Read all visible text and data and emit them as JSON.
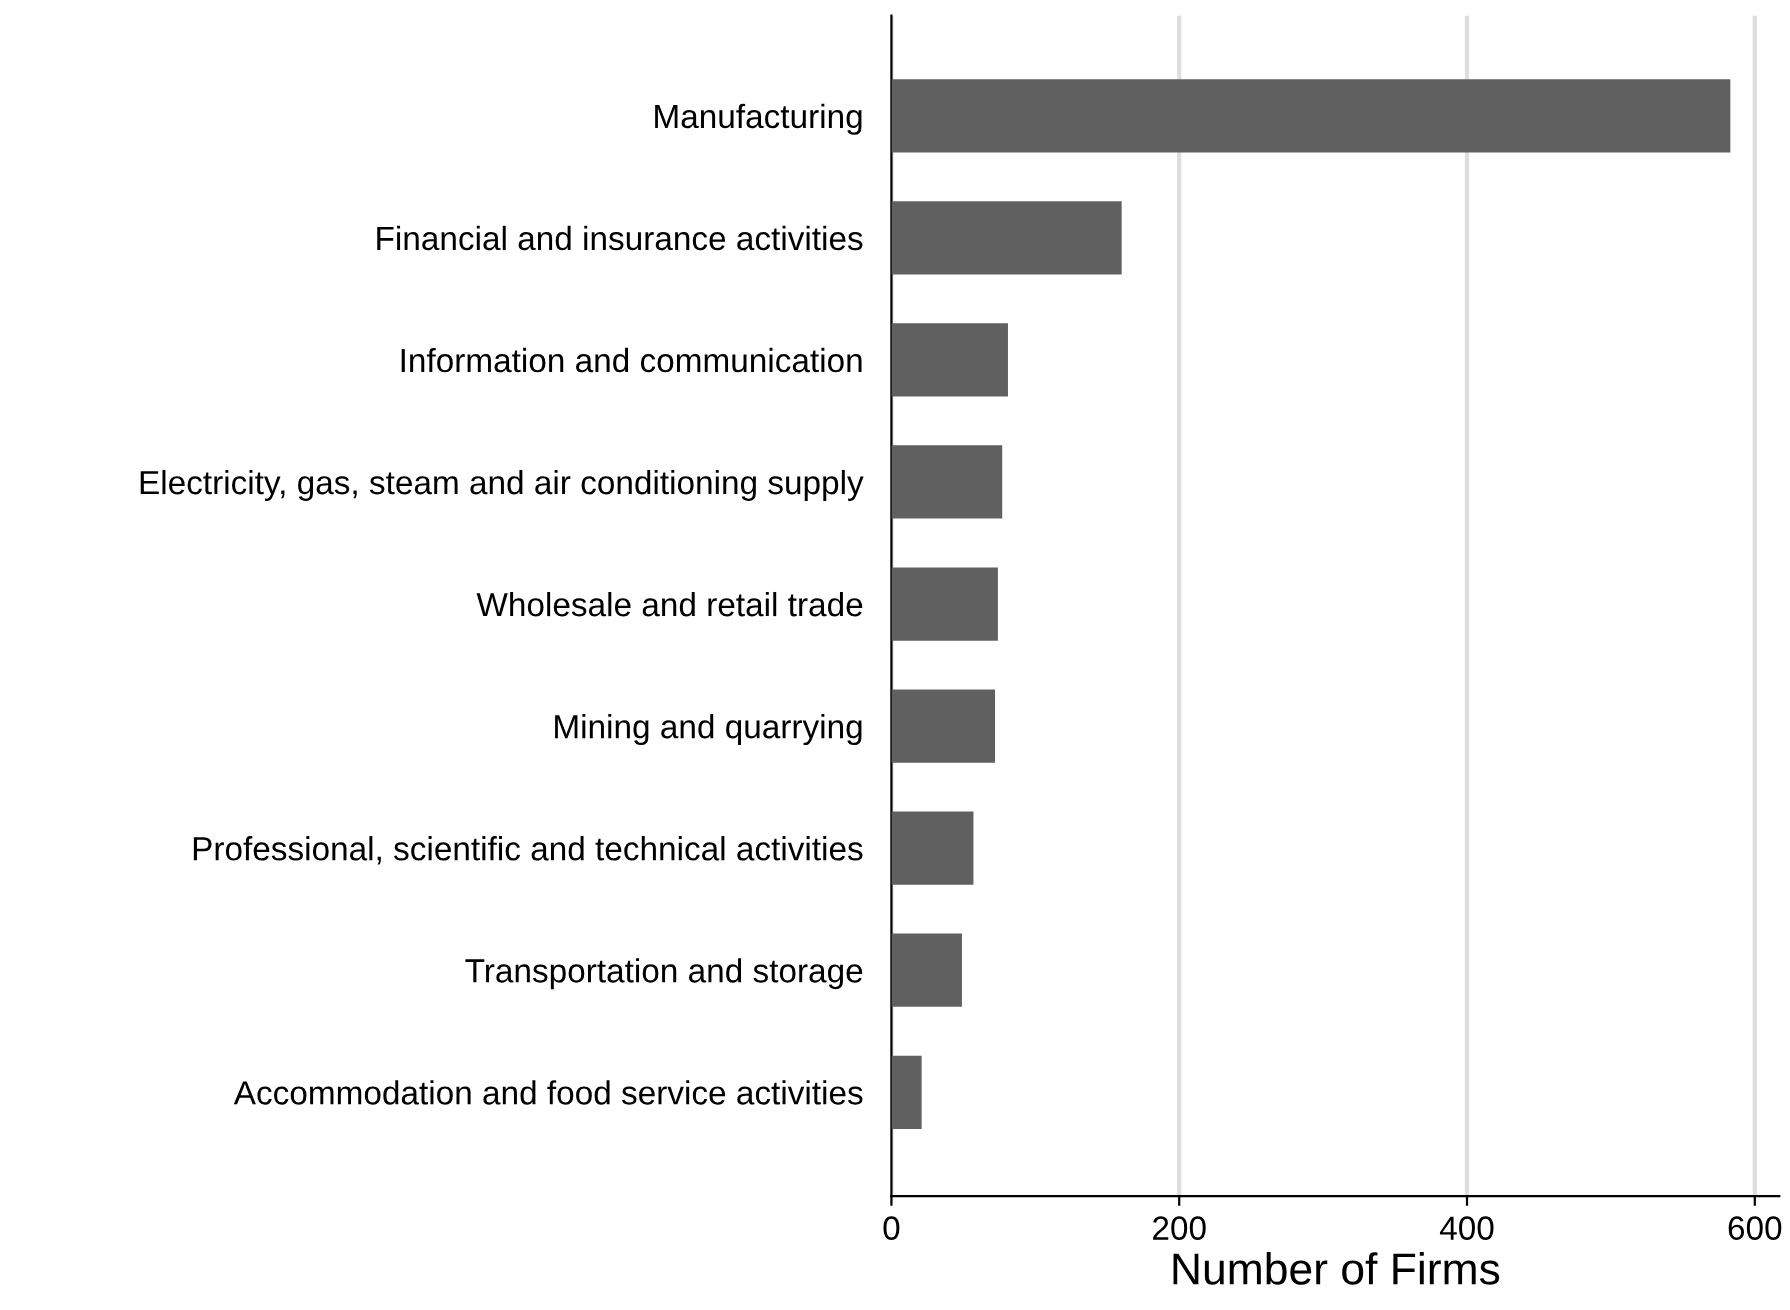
{
  "chart_data": {
    "type": "bar",
    "orientation": "horizontal",
    "categories": [
      "Manufacturing",
      "Financial and insurance activities",
      "Information and communication",
      "Electricity, gas, steam and air conditioning supply",
      "Wholesale and retail trade",
      "Mining and quarrying",
      "Professional, scientific and technical activities",
      "Transportation and storage",
      "Accommodation and food service activities"
    ],
    "values": [
      583,
      160,
      81,
      77,
      74,
      72,
      57,
      49,
      21
    ],
    "color": "#606060",
    "xlabel": "Number of Firms",
    "xlim": [
      0,
      617
    ],
    "xticks": [
      0,
      200,
      400,
      600
    ],
    "grid": "x",
    "legend": false
  }
}
